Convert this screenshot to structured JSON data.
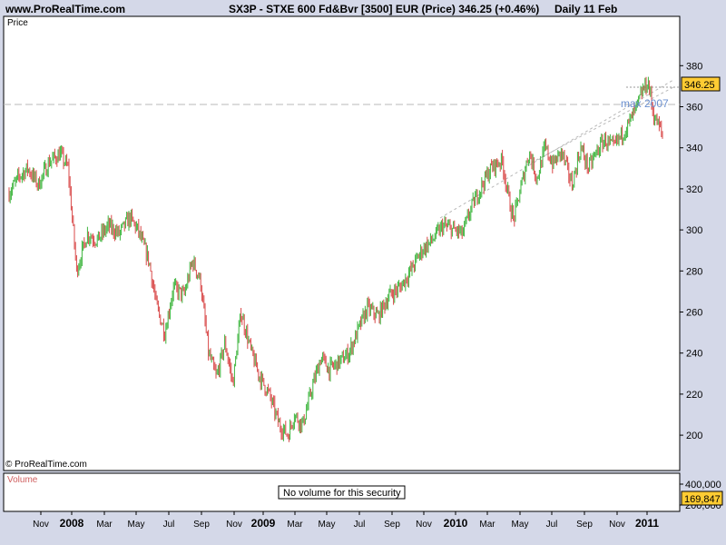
{
  "header": {
    "site": "www.ProRealTime.com",
    "symbol_line": "SX3P - STXE 600 Fd&Bvr [3500] EUR (Price)   346.25 (+0.46%)",
    "period": "Daily  11 Feb"
  },
  "price_panel": {
    "label": "Price",
    "copyright": "© ProRealTime.com",
    "last_value": "346.25",
    "annotation": "max 2007"
  },
  "volume_panel": {
    "label": "Volume",
    "message": "No volume for this security",
    "last_value": "169,847",
    "ticks": [
      "400,000",
      "200,000"
    ]
  },
  "chart_data": {
    "type": "line",
    "ylim": [
      190,
      385
    ],
    "yticks": [
      200,
      220,
      240,
      260,
      280,
      300,
      320,
      340,
      360,
      380
    ],
    "x_tick_labels": [
      "Nov",
      "2008",
      "Mar",
      "May",
      "Jul",
      "Sep",
      "Nov",
      "2009",
      "Mar",
      "May",
      "Jul",
      "Sep",
      "Nov",
      "2010",
      "Mar",
      "May",
      "Jul",
      "Sep",
      "Nov",
      "2011"
    ],
    "x_tick_bold": [
      false,
      true,
      false,
      false,
      false,
      false,
      false,
      true,
      false,
      false,
      false,
      false,
      false,
      true,
      false,
      false,
      false,
      false,
      false,
      true
    ],
    "x_range": [
      "2007-10-01",
      "2011-02-28"
    ],
    "series": [
      {
        "x": [
          "2007-10-01",
          "2007-10-20",
          "2007-11-05",
          "2007-11-25",
          "2007-12-15",
          "2008-01-05",
          "2008-01-20",
          "2008-02-05",
          "2008-02-25",
          "2008-03-15",
          "2008-04-05",
          "2008-04-25",
          "2008-05-15",
          "2008-05-30",
          "2008-06-20",
          "2008-07-05",
          "2008-07-20",
          "2008-08-05",
          "2008-08-25",
          "2008-09-10",
          "2008-09-25",
          "2008-10-10",
          "2008-10-25",
          "2008-11-10",
          "2008-11-25",
          "2008-12-10",
          "2008-12-30",
          "2009-01-15",
          "2009-02-01",
          "2009-02-20",
          "2009-03-09",
          "2009-03-20",
          "2009-04-05",
          "2009-04-25",
          "2009-05-10",
          "2009-05-25",
          "2009-06-15",
          "2009-07-01",
          "2009-07-20",
          "2009-08-05",
          "2009-08-25",
          "2009-09-15",
          "2009-10-05",
          "2009-10-25",
          "2009-11-15",
          "2009-12-05",
          "2009-12-25",
          "2010-01-15",
          "2010-01-31",
          "2010-02-15",
          "2010-03-05",
          "2010-03-25",
          "2010-04-15",
          "2010-04-30",
          "2010-05-07",
          "2010-05-20",
          "2010-06-05",
          "2010-06-20",
          "2010-07-05",
          "2010-07-20",
          "2010-08-05",
          "2010-08-25",
          "2010-09-10",
          "2010-09-25",
          "2010-10-10",
          "2010-10-25",
          "2010-11-10",
          "2010-11-25",
          "2010-12-10",
          "2010-12-25",
          "2011-01-05",
          "2011-01-15",
          "2011-01-25",
          "2011-02-05",
          "2011-02-11"
        ],
        "y": [
          318,
          326,
          330,
          322,
          333,
          337,
          330,
          280,
          298,
          295,
          302,
          298,
          306,
          300,
          285,
          262,
          250,
          272,
          268,
          285,
          275,
          240,
          228,
          245,
          225,
          260,
          240,
          228,
          220,
          205,
          200,
          210,
          205,
          225,
          238,
          232,
          236,
          240,
          252,
          262,
          258,
          268,
          272,
          280,
          290,
          295,
          302,
          300,
          298,
          310,
          320,
          330,
          334,
          312,
          305,
          320,
          338,
          325,
          340,
          332,
          338,
          322,
          340,
          330,
          338,
          344,
          340,
          346,
          352,
          360,
          368,
          372,
          356,
          350,
          346.25
        ]
      }
    ]
  }
}
